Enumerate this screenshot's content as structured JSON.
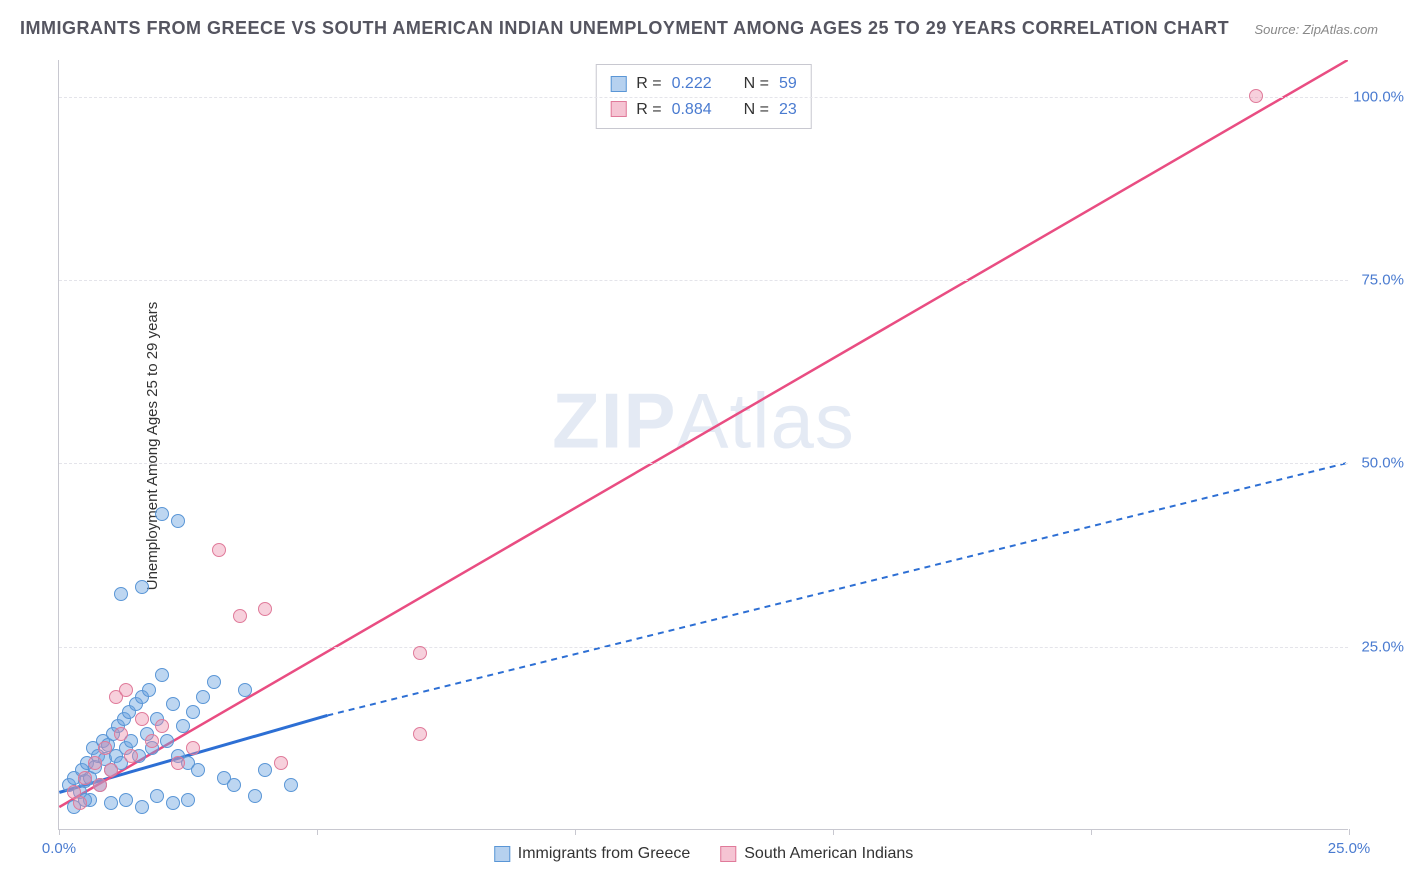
{
  "title": "IMMIGRANTS FROM GREECE VS SOUTH AMERICAN INDIAN UNEMPLOYMENT AMONG AGES 25 TO 29 YEARS CORRELATION CHART",
  "source": "Source: ZipAtlas.com",
  "ylabel": "Unemployment Among Ages 25 to 29 years",
  "watermark_a": "ZIP",
  "watermark_b": "Atlas",
  "xlim": [
    0,
    25
  ],
  "ylim": [
    0,
    105
  ],
  "xticks": [
    0,
    5,
    10,
    15,
    20,
    25
  ],
  "xtick_labels": [
    "0.0%",
    "",
    "",
    "",
    "",
    "25.0%"
  ],
  "yticks": [
    25,
    50,
    75,
    100
  ],
  "ytick_labels": [
    "25.0%",
    "50.0%",
    "75.0%",
    "100.0%"
  ],
  "grid_color": "#e4e4ea",
  "axis_color": "#c8c8d0",
  "background_color": "#ffffff",
  "series": {
    "greece": {
      "label": "Immigrants from Greece",
      "color_fill": "rgba(109,163,224,0.45)",
      "color_stroke": "#5a96d6",
      "R": "0.222",
      "N": "59",
      "trend": {
        "x1": 0,
        "y1": 5,
        "x2": 5.2,
        "y2": 15.5,
        "x2_ext": 25,
        "y2_ext": 50,
        "stroke": "#2d6fd4",
        "width": 3,
        "dash_ext": "6 5"
      },
      "points": [
        [
          0.2,
          6
        ],
        [
          0.3,
          7
        ],
        [
          0.4,
          5
        ],
        [
          0.45,
          8
        ],
        [
          0.5,
          6.5
        ],
        [
          0.55,
          9
        ],
        [
          0.6,
          7
        ],
        [
          0.65,
          11
        ],
        [
          0.7,
          8.5
        ],
        [
          0.75,
          10
        ],
        [
          0.8,
          6
        ],
        [
          0.85,
          12
        ],
        [
          0.9,
          9.5
        ],
        [
          0.95,
          11.5
        ],
        [
          1.0,
          8
        ],
        [
          1.05,
          13
        ],
        [
          1.1,
          10
        ],
        [
          1.15,
          14
        ],
        [
          1.2,
          9
        ],
        [
          1.25,
          15
        ],
        [
          1.3,
          11
        ],
        [
          1.35,
          16
        ],
        [
          1.4,
          12
        ],
        [
          1.5,
          17
        ],
        [
          1.55,
          10
        ],
        [
          1.6,
          18
        ],
        [
          1.7,
          13
        ],
        [
          1.75,
          19
        ],
        [
          1.8,
          11
        ],
        [
          1.9,
          15
        ],
        [
          2.0,
          21
        ],
        [
          2.1,
          12
        ],
        [
          2.2,
          17
        ],
        [
          2.3,
          10
        ],
        [
          2.4,
          14
        ],
        [
          2.5,
          9
        ],
        [
          2.6,
          16
        ],
        [
          2.7,
          8
        ],
        [
          2.8,
          18
        ],
        [
          3.0,
          20
        ],
        [
          3.2,
          7
        ],
        [
          3.4,
          6
        ],
        [
          3.6,
          19
        ],
        [
          0.6,
          4
        ],
        [
          1.0,
          3.5
        ],
        [
          1.3,
          4
        ],
        [
          1.6,
          3
        ],
        [
          1.9,
          4.5
        ],
        [
          2.2,
          3.5
        ],
        [
          2.5,
          4
        ],
        [
          4.0,
          8
        ],
        [
          4.5,
          6
        ],
        [
          2.0,
          43
        ],
        [
          2.3,
          42
        ],
        [
          1.6,
          33
        ],
        [
          1.2,
          32
        ],
        [
          3.8,
          4.5
        ],
        [
          0.3,
          3
        ],
        [
          0.5,
          4
        ]
      ]
    },
    "sai": {
      "label": "South American Indians",
      "color_fill": "rgba(235,138,168,0.40)",
      "color_stroke": "#e07a9a",
      "R": "0.884",
      "N": "23",
      "trend": {
        "x1": 0,
        "y1": 3,
        "x2": 25,
        "y2": 105,
        "stroke": "#e94d82",
        "width": 2.5
      },
      "points": [
        [
          0.3,
          5
        ],
        [
          0.5,
          7
        ],
        [
          0.7,
          9
        ],
        [
          0.9,
          11
        ],
        [
          1.0,
          8
        ],
        [
          1.2,
          13
        ],
        [
          1.4,
          10
        ],
        [
          1.6,
          15
        ],
        [
          1.8,
          12
        ],
        [
          2.0,
          14
        ],
        [
          1.1,
          18
        ],
        [
          1.3,
          19
        ],
        [
          2.3,
          9
        ],
        [
          2.6,
          11
        ],
        [
          0.4,
          3.5
        ],
        [
          0.8,
          6
        ],
        [
          3.1,
          38
        ],
        [
          3.5,
          29
        ],
        [
          4.0,
          30
        ],
        [
          4.3,
          9
        ],
        [
          7.0,
          13
        ],
        [
          7.0,
          24
        ],
        [
          23.2,
          100
        ]
      ]
    }
  },
  "legend_top": [
    {
      "swatch": "blue",
      "R_label": "R =",
      "R": "0.222",
      "N_label": "N =",
      "N": "59"
    },
    {
      "swatch": "pink",
      "R_label": "R =",
      "R": "0.884",
      "N_label": "N =",
      "N": "23"
    }
  ],
  "legend_bottom": [
    {
      "swatch": "blue",
      "label": "Immigrants from Greece"
    },
    {
      "swatch": "pink",
      "label": "South American Indians"
    }
  ]
}
